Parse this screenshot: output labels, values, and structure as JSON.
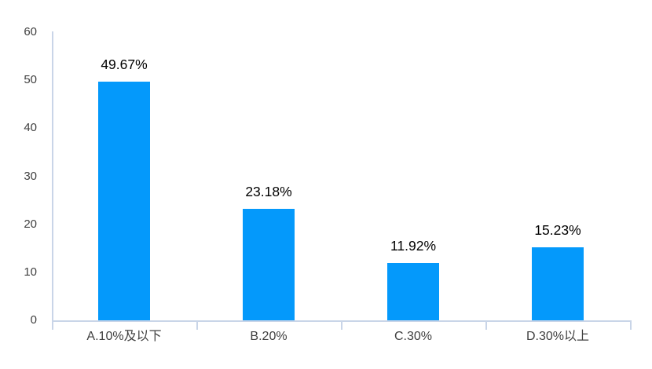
{
  "chart_data": {
    "type": "bar",
    "title": "",
    "xlabel": "",
    "ylabel": "",
    "categories": [
      "A.10%及以下",
      "B.20%",
      "C.30%",
      "D.30%以上"
    ],
    "values": [
      49.67,
      23.18,
      11.92,
      15.23
    ],
    "value_labels": [
      "49.67%",
      "23.18%",
      "11.92%",
      "15.23%"
    ],
    "ylim": [
      0,
      60
    ],
    "yticks": [
      0,
      10,
      20,
      30,
      40,
      50,
      60
    ],
    "grid": false,
    "legend": "none",
    "colors": {
      "bar": "#0499FB",
      "axis": "#C9D5E8",
      "tick_label": "#404040",
      "value_label": "#000000",
      "background": "#FFFFFF"
    }
  }
}
